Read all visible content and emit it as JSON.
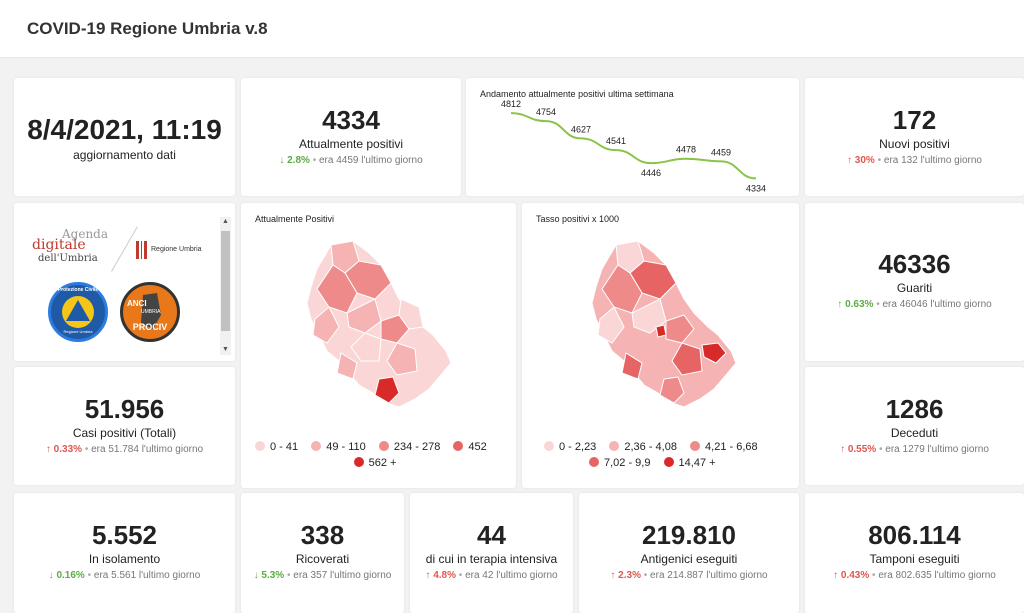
{
  "app": {
    "title": "COVID-19 Regione Umbria v.8"
  },
  "update": {
    "date": "8/4/2021, 11:19",
    "label": "aggiornamento dati"
  },
  "attualmente_positivi": {
    "value": "4334",
    "label": "Attualmente positivi",
    "pct": "2.8%",
    "prev": "era 4459  l'ultimo giorno",
    "direction": "down"
  },
  "nuovi_positivi": {
    "value": "172",
    "label": "Nuovi positivi",
    "pct": "30%",
    "prev": "era 132  l'ultimo giorno",
    "direction": "up"
  },
  "guariti": {
    "value": "46336",
    "label": "Guariti",
    "pct": "0.63%",
    "prev": "era 46046  l'ultimo giorno",
    "direction": "up"
  },
  "deceduti": {
    "value": "1286",
    "label": "Deceduti",
    "pct": "0.55%",
    "prev": "era 1279  l'ultimo giorno",
    "direction": "up"
  },
  "casi_totali": {
    "value": "51.956",
    "label": "Casi positivi (Totali)",
    "pct": "0.33%",
    "prev": "era 51.784  l'ultimo giorno",
    "direction": "up"
  },
  "isolamento": {
    "value": "5.552",
    "label": "In isolamento",
    "pct": "0.16%",
    "prev": "era 5.561  l'ultimo giorno",
    "direction": "down"
  },
  "ricoverati": {
    "value": "338",
    "label": "Ricoverati",
    "pct": "5.3%",
    "prev": "era 357  l'ultimo giorno",
    "direction": "down"
  },
  "terapia_intensiva": {
    "value": "44",
    "label": "di cui in terapia intensiva",
    "pct": "4.8%",
    "prev": "era 42  l'ultimo giorno",
    "direction": "up"
  },
  "antigenici": {
    "value": "219.810",
    "label": "Antigenici eseguiti",
    "pct": "2.3%",
    "prev": "era 214.887  l'ultimo giorno",
    "direction": "up"
  },
  "tamponi": {
    "value": "806.114",
    "label": "Tamponi eseguiti",
    "pct": "0.43%",
    "prev": "era 802.635  l'ultimo giorno",
    "direction": "up"
  },
  "logos": {
    "agenda_line1": "Agenda",
    "agenda_line2": "digitale",
    "agenda_line3": "dell'Umbria",
    "regione": "Regione Umbria",
    "protezione": "Protezione Civile",
    "protezione_sub": "Regione Umbria",
    "anci": "ANCI",
    "anci_sub": "UMBRIA",
    "prociv": "PROCIV"
  },
  "map1": {
    "title": "Attualmente Positivi",
    "legend": [
      {
        "label": "0 - 41",
        "color": "#fbd6d6"
      },
      {
        "label": "49 - 110",
        "color": "#f5b3b3"
      },
      {
        "label": "234 - 278",
        "color": "#ee8a8a"
      },
      {
        "label": "452",
        "color": "#e66464"
      },
      {
        "label": "562 +",
        "color": "#d92a2a"
      }
    ]
  },
  "map2": {
    "title": "Tasso positivi x 1000",
    "legend": [
      {
        "label": "0 - 2,23",
        "color": "#fbd6d6"
      },
      {
        "label": "2,36 - 4,08",
        "color": "#f5b3b3"
      },
      {
        "label": "4,21 - 6,68",
        "color": "#ee8a8a"
      },
      {
        "label": "7,02 - 9,9",
        "color": "#e66464"
      },
      {
        "label": "14,47 +",
        "color": "#d92a2a"
      }
    ]
  },
  "chart_data": {
    "type": "line",
    "title": "Andamento attualmente positivi ultima settimana",
    "values": [
      4812,
      4754,
      4627,
      4541,
      4446,
      4478,
      4459,
      4334
    ],
    "labels": [
      "4812",
      "4754",
      "4627",
      "4541",
      "4446",
      "4478",
      "4459",
      "4334"
    ],
    "ylim": [
      4300,
      4850
    ],
    "color": "#8bc34a",
    "grid": false,
    "legend": "none"
  }
}
